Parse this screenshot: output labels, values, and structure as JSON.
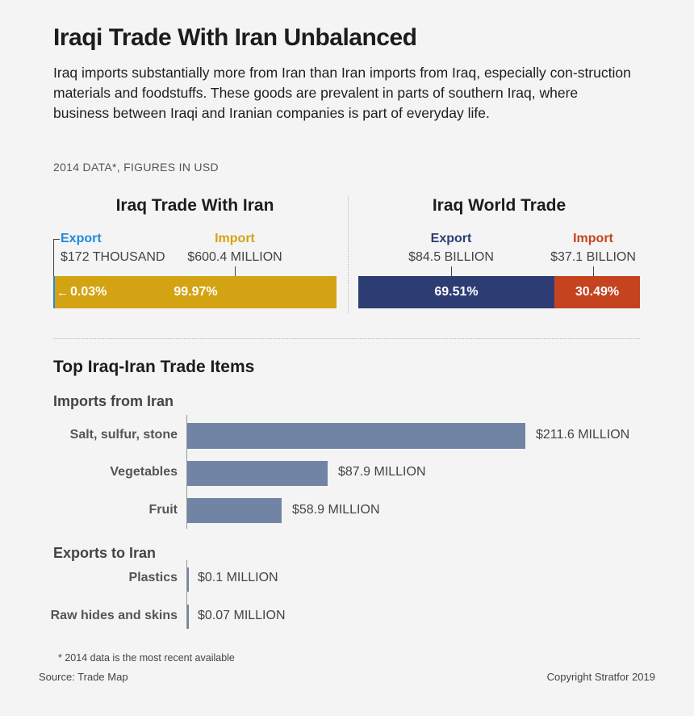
{
  "title": "Iraqi Trade With Iran Unbalanced",
  "subtitle": "Iraq imports substantially more from Iran than Iran imports from Iraq, especially con-struction materials and foodstuffs. These goods are prevalent in parts of southern Iraq, where business between Iraqi and Iranian companies is part of everyday life.",
  "data_note": "2014 DATA*, FIGURES IN USD",
  "colors": {
    "export_blue": "#1f8bdc",
    "import_gold": "#d4a314",
    "world_export": "#2d3d73",
    "world_import": "#c5431f",
    "bar": "#7184a4"
  },
  "chart_data": [
    {
      "type": "bar",
      "title": "Iraq Trade With Iran",
      "categories": [
        "Export",
        "Import"
      ],
      "values": [
        172000,
        600400000
      ],
      "value_labels": [
        "$172 THOUSAND",
        "$600.4 MILLION"
      ],
      "shares": [
        0.03,
        99.97
      ],
      "share_labels": [
        "0.03%",
        "99.97%"
      ]
    },
    {
      "type": "bar",
      "title": "Iraq World Trade",
      "categories": [
        "Export",
        "Import"
      ],
      "values": [
        84500000000,
        37100000000
      ],
      "value_labels": [
        "$84.5 BILLION",
        "$37.1 BILLION"
      ],
      "shares": [
        69.51,
        30.49
      ],
      "share_labels": [
        "69.51%",
        "30.49%"
      ]
    },
    {
      "type": "bar",
      "title": "Top Iraq-Iran Trade Items",
      "groups": [
        {
          "name": "Imports from Iran",
          "categories": [
            "Salt, sulfur, stone",
            "Vegetables",
            "Fruit"
          ],
          "values": [
            211.6,
            87.9,
            58.9
          ],
          "value_labels": [
            "$211.6 MILLION",
            "$87.9 MILLION",
            "$58.9 MILLION"
          ]
        },
        {
          "name": "Exports to Iran",
          "categories": [
            "Plastics",
            "Raw hides and skins"
          ],
          "values": [
            0.1,
            0.07
          ],
          "value_labels": [
            "$0.1 MILLION",
            "$0.07 MILLION"
          ]
        }
      ]
    }
  ],
  "footnote": "* 2014 data is the most recent available",
  "source": "Source: Trade Map",
  "copyright": "Copyright Stratfor 2019"
}
